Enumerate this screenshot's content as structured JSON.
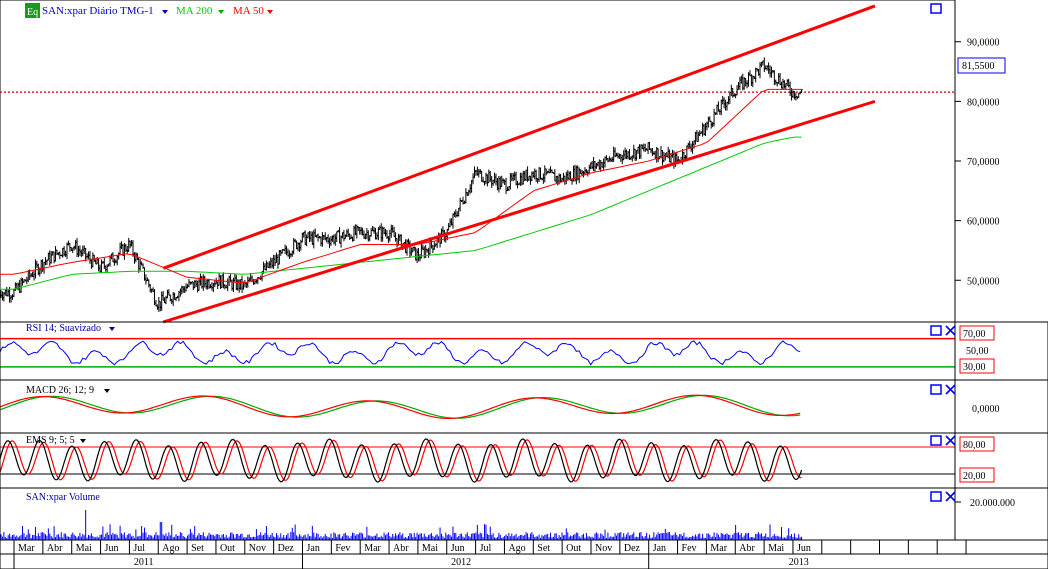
{
  "header": {
    "eq_label": "Eq",
    "symbol_label": "SAN:xpar Diário TMG-1",
    "ma200_label": "MA 200",
    "ma50_label": "MA 50"
  },
  "panels": {
    "rsi": {
      "label": "RSI 14; Suavizado",
      "upper": "70,00",
      "mid": "50,00",
      "lower": "30,00"
    },
    "macd": {
      "label": "MACD 26; 12; 9",
      "zero": "0,0000"
    },
    "stoch": {
      "label": "EMS 9; 5; 5",
      "upper": "80,00",
      "lower": "20,00"
    },
    "volume": {
      "label": "SAN:xpar Volume",
      "tick": "20.000.000"
    }
  },
  "colors": {
    "price_bars": "#000000",
    "ma50": "#ff0000",
    "ma200": "#00cc00",
    "channel": "#ff0000",
    "rsi_line": "#0000ff",
    "volume": "#0000ff",
    "macd_signal": "#00aa00",
    "stoch_k": "#000000",
    "stoch_d": "#ff0000",
    "accent_label": "#ff0000"
  },
  "chart_data": {
    "type": "line",
    "title": "SAN:xpar Diário TMG-1",
    "ylim": [
      43,
      97
    ],
    "y_ticks": [
      "90,0000",
      "80,0000",
      "70,0000",
      "60,0000",
      "50,0000"
    ],
    "current_price": "81,5500",
    "x_months": [
      "Mar",
      "Abr",
      "Mai",
      "Jun",
      "Jul",
      "Ago",
      "Set",
      "Out",
      "Nov",
      "Dez",
      "Jan",
      "Fev",
      "Mar",
      "Abr",
      "Mai",
      "Jun",
      "Jul",
      "Ago",
      "Set",
      "Out",
      "Nov",
      "Dez",
      "Jan",
      "Fev",
      "Mar",
      "Abr",
      "Mai",
      "Jun"
    ],
    "x_years": [
      "2011",
      "2012",
      "2013"
    ],
    "series": [
      {
        "name": "SAN:xpar",
        "x": [
          "2011-03",
          "2011-04",
          "2011-05",
          "2011-06",
          "2011-07",
          "2011-08",
          "2011-09",
          "2011-10",
          "2011-11",
          "2011-12",
          "2012-01",
          "2012-02",
          "2012-03",
          "2012-04",
          "2012-05",
          "2012-06",
          "2012-07",
          "2012-08",
          "2012-09",
          "2012-10",
          "2012-11",
          "2012-12",
          "2013-01",
          "2013-02",
          "2013-03",
          "2013-04",
          "2013-05",
          "2013-06"
        ],
        "values": [
          48,
          53,
          56,
          52,
          56,
          46,
          49,
          50,
          49,
          53,
          57,
          57,
          58,
          58,
          54,
          58,
          68,
          66,
          68,
          67,
          69,
          71,
          72,
          70,
          76,
          82,
          86,
          81.5
        ]
      },
      {
        "name": "MA 50",
        "x": [
          "2011-03",
          "2011-05",
          "2011-07",
          "2011-09",
          "2011-11",
          "2012-01",
          "2012-03",
          "2012-05",
          "2012-07",
          "2012-09",
          "2012-11",
          "2013-01",
          "2013-03",
          "2013-05",
          "2013-06"
        ],
        "values": [
          51,
          53,
          54.5,
          50.5,
          49.5,
          53,
          56,
          56,
          58,
          65,
          68,
          70,
          73,
          82,
          82
        ]
      },
      {
        "name": "MA 200",
        "x": [
          "2011-03",
          "2011-05",
          "2011-07",
          "2011-09",
          "2011-11",
          "2012-01",
          "2012-03",
          "2012-05",
          "2012-07",
          "2012-09",
          "2012-11",
          "2013-01",
          "2013-03",
          "2013-05",
          "2013-06"
        ],
        "values": [
          48.5,
          51,
          51.5,
          51.5,
          51,
          52,
          53,
          54,
          55,
          58,
          61,
          65,
          69,
          73,
          74
        ]
      }
    ],
    "channel_upper": {
      "x": [
        "2011-08",
        "2013-06"
      ],
      "values": [
        52,
        96
      ]
    },
    "channel_lower": {
      "x": [
        "2011-08",
        "2013-06"
      ],
      "values": [
        43,
        80
      ]
    }
  }
}
